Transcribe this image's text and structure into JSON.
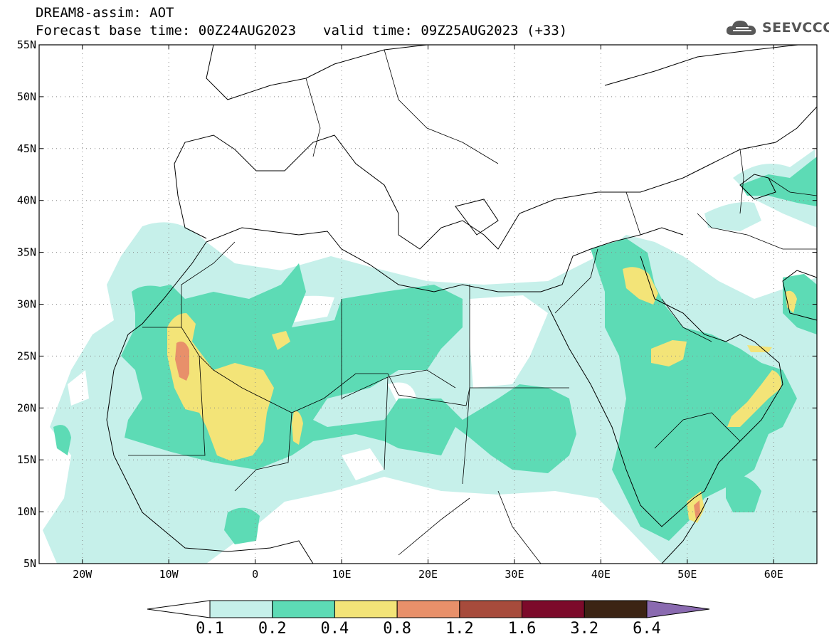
{
  "header": {
    "line1": "DREAM8-assim: AOT",
    "line2_base": "Forecast base time: 00Z24AUG2023",
    "line2_valid": "valid time: 09Z25AUG2023 (+33)"
  },
  "logo": {
    "text": "SEEVCCC",
    "icon": "cloud-icon"
  },
  "map": {
    "projection": "lat-lon",
    "lon_range": [
      -25,
      65
    ],
    "lat_range": [
      5,
      55
    ],
    "gridlines": "dotted",
    "lat_labels": [
      "55N",
      "50N",
      "45N",
      "40N",
      "35N",
      "30N",
      "25N",
      "20N",
      "15N",
      "10N",
      "5N"
    ],
    "lon_labels": [
      "20W",
      "10W",
      "0",
      "10E",
      "20E",
      "30E",
      "40E",
      "50E",
      "60E"
    ]
  },
  "colorbar": {
    "labels": [
      "0.1",
      "0.2",
      "0.4",
      "0.8",
      "1.2",
      "1.6",
      "3.2",
      "6.4"
    ],
    "colors": [
      "#ffffff",
      "#c6f0ea",
      "#5ddbb5",
      "#f3e478",
      "#e8906a",
      "#a74b3c",
      "#7c0a2a",
      "#3c2414",
      "#8a6ab0"
    ]
  }
}
